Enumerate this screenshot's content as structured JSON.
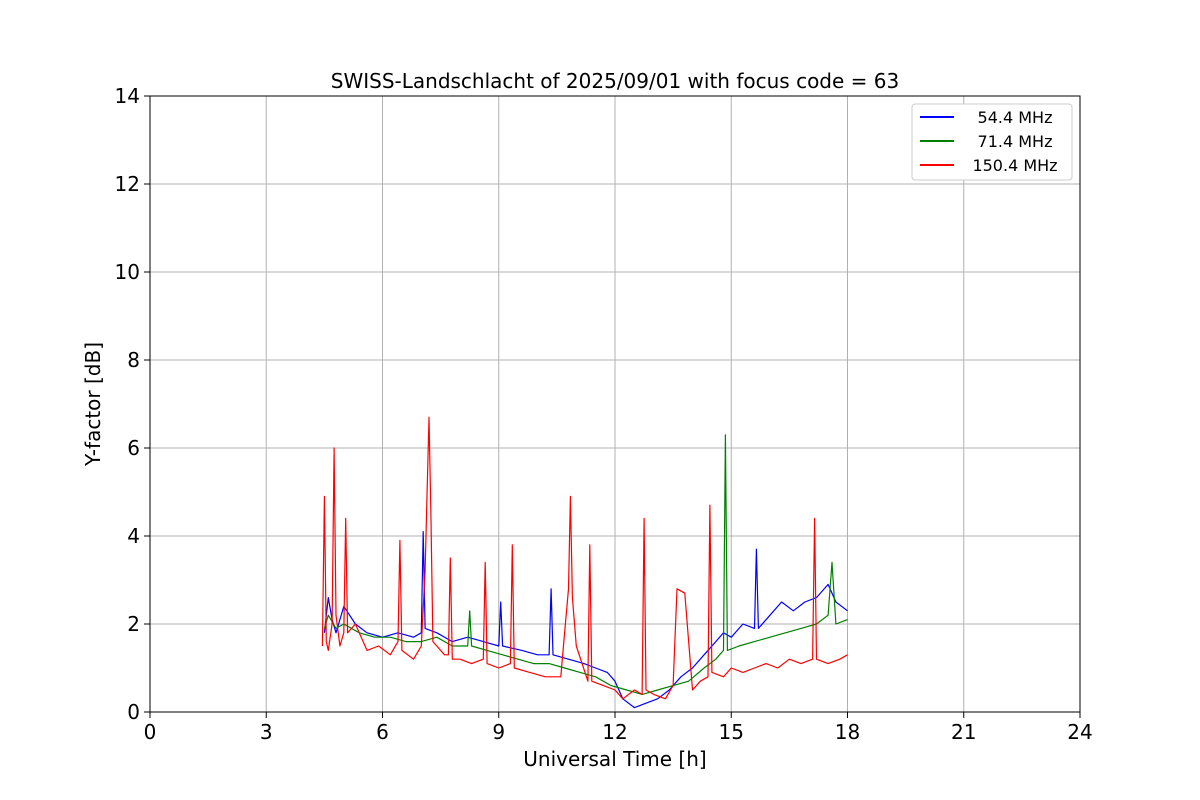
{
  "chart_data": {
    "type": "line",
    "title": "SWISS-Landschlacht of 2025/09/01 with focus code = 63",
    "xlabel": "Universal Time [h]",
    "ylabel": "Y-factor [dB]",
    "xlim": [
      0,
      24
    ],
    "ylim": [
      0,
      14
    ],
    "xticks": [
      0,
      3,
      6,
      9,
      12,
      15,
      18,
      21,
      24
    ],
    "yticks": [
      0,
      2,
      4,
      6,
      8,
      10,
      12,
      14
    ],
    "grid": true,
    "legend_position": "top-right",
    "series": [
      {
        "name": "54.4 MHz",
        "color": "#0000ff",
        "x": [
          4.5,
          4.6,
          4.7,
          4.8,
          5.0,
          5.3,
          5.6,
          6.0,
          6.4,
          6.8,
          7.0,
          7.05,
          7.1,
          7.4,
          7.8,
          8.2,
          8.6,
          9.0,
          9.05,
          9.1,
          9.6,
          10.0,
          10.3,
          10.35,
          10.4,
          10.8,
          11.2,
          11.5,
          11.8,
          12.0,
          12.2,
          12.5,
          12.8,
          13.1,
          13.4,
          13.7,
          14.0,
          14.3,
          14.6,
          14.8,
          15.0,
          15.3,
          15.6,
          15.65,
          15.7,
          16.0,
          16.3,
          16.6,
          16.9,
          17.2,
          17.5,
          17.7,
          18.0
        ],
        "values": [
          1.8,
          2.6,
          2.1,
          1.8,
          2.4,
          2.0,
          1.8,
          1.7,
          1.8,
          1.7,
          1.8,
          4.1,
          1.9,
          1.8,
          1.6,
          1.7,
          1.6,
          1.5,
          2.5,
          1.5,
          1.4,
          1.3,
          1.3,
          2.8,
          1.3,
          1.2,
          1.1,
          1.0,
          0.9,
          0.7,
          0.3,
          0.1,
          0.2,
          0.3,
          0.5,
          0.8,
          1.0,
          1.3,
          1.6,
          1.8,
          1.7,
          2.0,
          1.9,
          3.7,
          1.9,
          2.2,
          2.5,
          2.3,
          2.5,
          2.6,
          2.9,
          2.5,
          2.3
        ]
      },
      {
        "name": "71.4 MHz",
        "color": "#008000",
        "x": [
          4.5,
          4.6,
          4.8,
          5.0,
          5.4,
          5.8,
          6.2,
          6.6,
          7.0,
          7.4,
          7.8,
          8.2,
          8.25,
          8.3,
          8.7,
          9.1,
          9.5,
          9.9,
          10.3,
          10.7,
          11.1,
          11.5,
          11.9,
          12.3,
          12.7,
          13.1,
          13.5,
          13.9,
          14.3,
          14.6,
          14.8,
          14.85,
          14.9,
          15.2,
          15.6,
          16.0,
          16.4,
          16.8,
          17.2,
          17.5,
          17.6,
          17.7,
          18.0
        ],
        "values": [
          1.9,
          2.2,
          1.9,
          2.0,
          1.8,
          1.7,
          1.7,
          1.6,
          1.6,
          1.7,
          1.5,
          1.5,
          2.3,
          1.5,
          1.4,
          1.3,
          1.2,
          1.1,
          1.1,
          1.0,
          0.9,
          0.8,
          0.6,
          0.5,
          0.4,
          0.5,
          0.6,
          0.7,
          1.0,
          1.2,
          1.4,
          6.3,
          1.4,
          1.5,
          1.6,
          1.7,
          1.8,
          1.9,
          2.0,
          2.2,
          3.4,
          2.0,
          2.1
        ]
      },
      {
        "name": "150.4 MHz",
        "color": "#ff0000",
        "x": [
          4.45,
          4.5,
          4.55,
          4.6,
          4.7,
          4.75,
          4.8,
          4.9,
          5.0,
          5.05,
          5.1,
          5.3,
          5.6,
          5.9,
          6.2,
          6.4,
          6.45,
          6.5,
          6.8,
          7.0,
          7.1,
          7.2,
          7.25,
          7.3,
          7.4,
          7.6,
          7.7,
          7.75,
          7.8,
          8.0,
          8.3,
          8.6,
          8.65,
          8.7,
          9.0,
          9.3,
          9.35,
          9.4,
          9.8,
          10.2,
          10.6,
          10.7,
          10.8,
          10.85,
          10.9,
          11.0,
          11.3,
          11.35,
          11.4,
          11.7,
          12.0,
          12.2,
          12.5,
          12.7,
          12.75,
          12.8,
          13.0,
          13.3,
          13.5,
          13.6,
          13.8,
          14.0,
          14.2,
          14.4,
          14.45,
          14.5,
          14.8,
          15.0,
          15.3,
          15.6,
          15.9,
          16.2,
          16.5,
          16.8,
          17.1,
          17.15,
          17.2,
          17.5,
          17.8,
          18.0
        ],
        "values": [
          1.5,
          4.9,
          1.6,
          1.4,
          2.0,
          6.0,
          2.2,
          1.5,
          1.8,
          4.4,
          1.8,
          2.0,
          1.4,
          1.5,
          1.3,
          1.6,
          3.9,
          1.4,
          1.2,
          1.5,
          3.2,
          6.7,
          4.5,
          1.6,
          1.5,
          1.3,
          1.3,
          3.5,
          1.2,
          1.2,
          1.1,
          1.2,
          3.4,
          1.1,
          1.0,
          1.1,
          3.8,
          1.0,
          0.9,
          0.8,
          0.8,
          1.8,
          2.8,
          4.9,
          2.6,
          1.5,
          0.7,
          3.8,
          0.7,
          0.6,
          0.5,
          0.3,
          0.5,
          0.4,
          4.4,
          0.5,
          0.4,
          0.3,
          0.6,
          2.8,
          2.7,
          0.5,
          0.7,
          0.8,
          4.7,
          0.9,
          0.8,
          1.0,
          0.9,
          1.0,
          1.1,
          1.0,
          1.2,
          1.1,
          1.2,
          4.4,
          1.2,
          1.1,
          1.2,
          1.3
        ]
      }
    ]
  }
}
